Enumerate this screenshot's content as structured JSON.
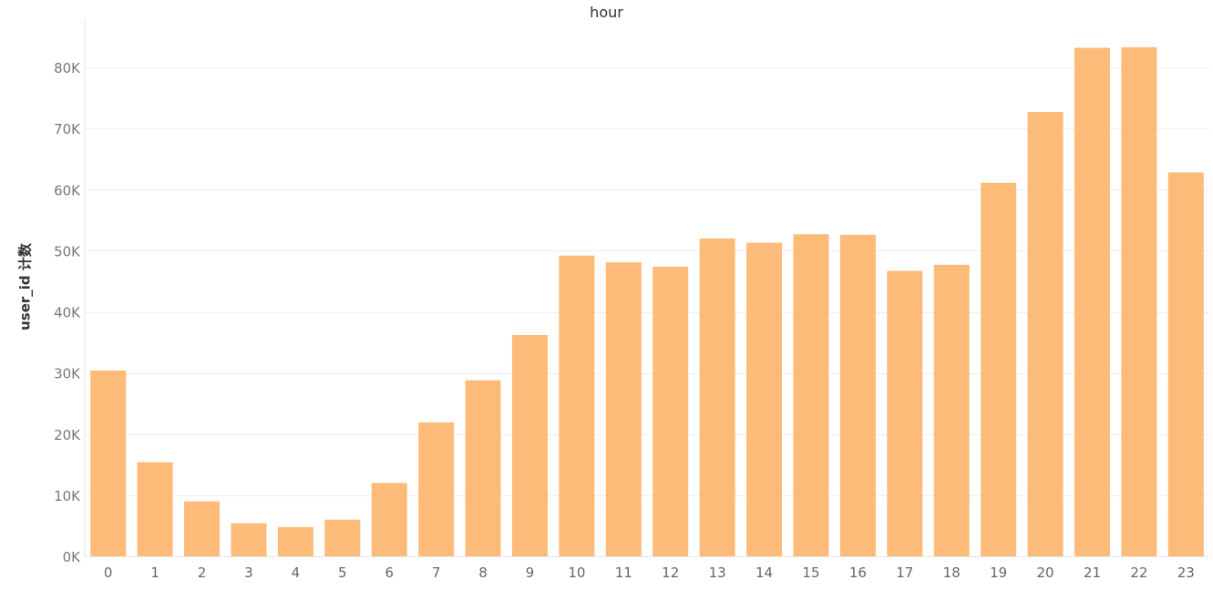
{
  "chart_data": {
    "type": "bar",
    "title": "hour",
    "xlabel": "",
    "ylabel": "user_id 计数",
    "categories": [
      "0",
      "1",
      "2",
      "3",
      "4",
      "5",
      "6",
      "7",
      "8",
      "9",
      "10",
      "11",
      "12",
      "13",
      "14",
      "15",
      "16",
      "17",
      "18",
      "19",
      "20",
      "21",
      "22",
      "23"
    ],
    "values": [
      30400,
      15400,
      9000,
      5400,
      4800,
      6000,
      12000,
      21900,
      28800,
      36200,
      49200,
      48100,
      47400,
      52000,
      51300,
      52700,
      52600,
      46700,
      47700,
      61100,
      72700,
      83200,
      83300,
      62800
    ],
    "ylim": [
      0,
      88000
    ],
    "yticks": [
      0,
      10000,
      20000,
      30000,
      40000,
      50000,
      60000,
      70000,
      80000
    ],
    "ytick_labels": [
      "0K",
      "10K",
      "20K",
      "30K",
      "40K",
      "50K",
      "60K",
      "70K",
      "80K"
    ],
    "grid": true,
    "bar_color": "#FDBB7A",
    "grid_color": "#EEEEEE"
  }
}
